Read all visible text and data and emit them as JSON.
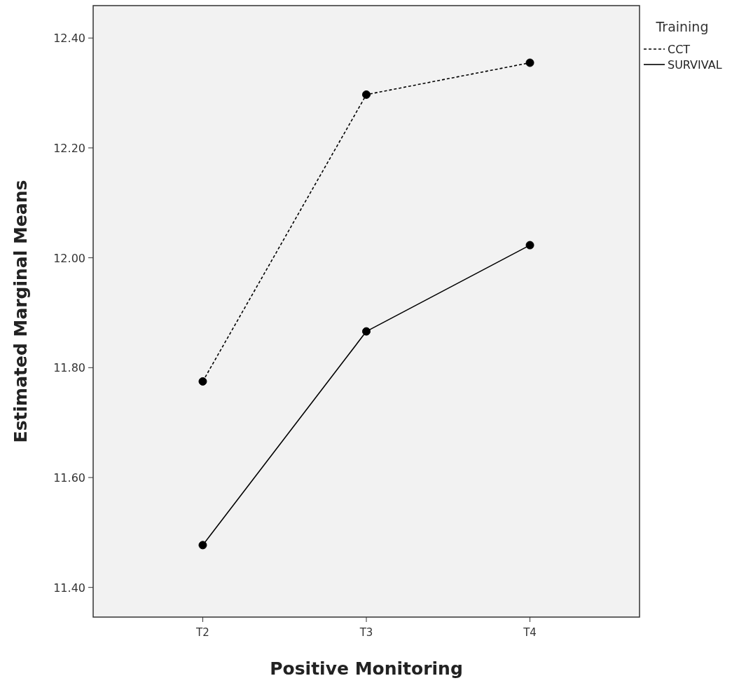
{
  "chart_data": {
    "type": "line",
    "xlabel": "Positive Monitoring",
    "ylabel": "Estimated Marginal Means",
    "legend_title": "Training",
    "categories": [
      "T2",
      "T3",
      "T4"
    ],
    "series": [
      {
        "name": "CCT",
        "color": "#000000",
        "line_style": "dashed",
        "values": [
          11.775,
          12.297,
          12.355
        ]
      },
      {
        "name": "SURVIVAL",
        "color": "#000000",
        "line_style": "solid",
        "values": [
          11.477,
          11.866,
          12.023
        ]
      }
    ],
    "ylim": [
      11.346,
      12.459
    ],
    "yticks": [
      {
        "value": 11.4,
        "label": "11.40"
      },
      {
        "value": 11.6,
        "label": "11.60"
      },
      {
        "value": 11.8,
        "label": "11.80"
      },
      {
        "value": 12.0,
        "label": "12.00"
      },
      {
        "value": 12.2,
        "label": "12.20"
      },
      {
        "value": 12.4,
        "label": "12.40"
      }
    ],
    "legend": "top right",
    "marker": "circle",
    "grid": false
  }
}
